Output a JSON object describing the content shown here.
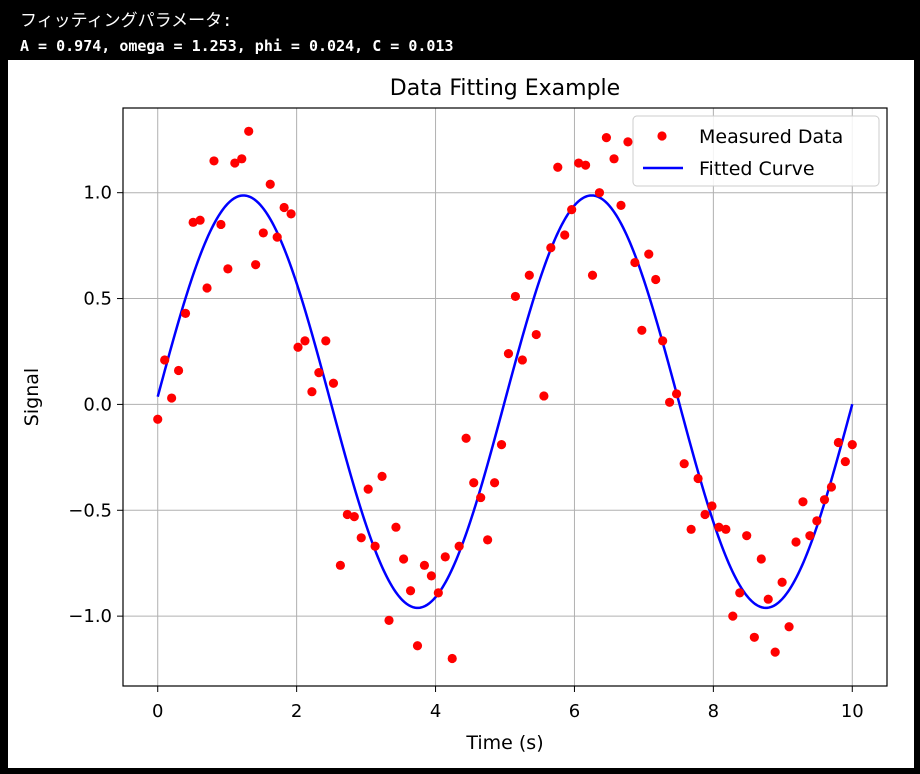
{
  "console": {
    "line1": "フィッティングパラメータ:",
    "line2": "A = 0.974, omega = 1.253, phi = 0.024, C = 0.013"
  },
  "chart_data": {
    "type": "scatter",
    "title": "Data Fitting Example",
    "xlabel": "Time (s)",
    "ylabel": "Signal",
    "xlim": [
      -0.5,
      10.5
    ],
    "ylim": [
      -1.33,
      1.4
    ],
    "xticks": [
      0,
      2,
      4,
      6,
      8,
      10
    ],
    "xtick_labels": [
      "0",
      "2",
      "4",
      "6",
      "8",
      "10"
    ],
    "yticks": [
      -1.0,
      -0.5,
      0.0,
      0.5,
      1.0
    ],
    "ytick_labels": [
      "−1.0",
      "−0.5",
      "0.0",
      "0.5",
      "1.0"
    ],
    "grid": true,
    "legend_position": "top-right",
    "series": [
      {
        "name": "Measured Data",
        "kind": "scatter",
        "color": "#ff0000",
        "points": [
          [
            0.0,
            -0.07
          ],
          [
            0.1,
            0.21
          ],
          [
            0.2,
            0.03
          ],
          [
            0.3,
            0.16
          ],
          [
            0.4,
            0.43
          ],
          [
            0.51,
            0.86
          ],
          [
            0.61,
            0.87
          ],
          [
            0.71,
            0.55
          ],
          [
            0.81,
            1.15
          ],
          [
            0.91,
            0.85
          ],
          [
            1.01,
            0.64
          ],
          [
            1.11,
            1.14
          ],
          [
            1.21,
            1.16
          ],
          [
            1.31,
            1.29
          ],
          [
            1.41,
            0.66
          ],
          [
            1.52,
            0.81
          ],
          [
            1.62,
            1.04
          ],
          [
            1.72,
            0.79
          ],
          [
            1.82,
            0.93
          ],
          [
            1.92,
            0.9
          ],
          [
            2.02,
            0.27
          ],
          [
            2.12,
            0.3
          ],
          [
            2.22,
            0.06
          ],
          [
            2.32,
            0.15
          ],
          [
            2.42,
            0.3
          ],
          [
            2.53,
            0.1
          ],
          [
            2.63,
            -0.76
          ],
          [
            2.73,
            -0.52
          ],
          [
            2.83,
            -0.53
          ],
          [
            2.93,
            -0.63
          ],
          [
            3.03,
            -0.4
          ],
          [
            3.13,
            -0.67
          ],
          [
            3.23,
            -0.34
          ],
          [
            3.33,
            -1.02
          ],
          [
            3.43,
            -0.58
          ],
          [
            3.54,
            -0.73
          ],
          [
            3.64,
            -0.88
          ],
          [
            3.74,
            -1.14
          ],
          [
            3.84,
            -0.76
          ],
          [
            3.94,
            -0.81
          ],
          [
            4.04,
            -0.89
          ],
          [
            4.14,
            -0.72
          ],
          [
            4.24,
            -1.2
          ],
          [
            4.34,
            -0.67
          ],
          [
            4.44,
            -0.16
          ],
          [
            4.55,
            -0.37
          ],
          [
            4.65,
            -0.44
          ],
          [
            4.75,
            -0.64
          ],
          [
            4.85,
            -0.37
          ],
          [
            4.95,
            -0.19
          ],
          [
            5.05,
            0.24
          ],
          [
            5.15,
            0.51
          ],
          [
            5.25,
            0.21
          ],
          [
            5.35,
            0.61
          ],
          [
            5.45,
            0.33
          ],
          [
            5.56,
            0.04
          ],
          [
            5.66,
            0.74
          ],
          [
            5.76,
            1.12
          ],
          [
            5.86,
            0.8
          ],
          [
            5.96,
            0.92
          ],
          [
            6.06,
            1.14
          ],
          [
            6.16,
            1.13
          ],
          [
            6.26,
            0.61
          ],
          [
            6.36,
            1.0
          ],
          [
            6.46,
            1.26
          ],
          [
            6.57,
            1.16
          ],
          [
            6.67,
            0.94
          ],
          [
            6.77,
            1.24
          ],
          [
            6.87,
            0.67
          ],
          [
            6.97,
            0.35
          ],
          [
            7.07,
            0.71
          ],
          [
            7.17,
            0.59
          ],
          [
            7.27,
            0.3
          ],
          [
            7.37,
            0.01
          ],
          [
            7.47,
            0.05
          ],
          [
            7.58,
            -0.28
          ],
          [
            7.68,
            -0.59
          ],
          [
            7.78,
            -0.35
          ],
          [
            7.88,
            -0.52
          ],
          [
            7.98,
            -0.48
          ],
          [
            8.08,
            -0.58
          ],
          [
            8.18,
            -0.59
          ],
          [
            8.28,
            -1.0
          ],
          [
            8.38,
            -0.89
          ],
          [
            8.48,
            -0.62
          ],
          [
            8.59,
            -1.1
          ],
          [
            8.69,
            -0.73
          ],
          [
            8.79,
            -0.92
          ],
          [
            8.89,
            -1.17
          ],
          [
            8.99,
            -0.84
          ],
          [
            9.09,
            -1.05
          ],
          [
            9.19,
            -0.65
          ],
          [
            9.29,
            -0.46
          ],
          [
            9.39,
            -0.62
          ],
          [
            9.49,
            -0.55
          ],
          [
            9.6,
            -0.45
          ],
          [
            9.7,
            -0.39
          ],
          [
            9.8,
            -0.18
          ],
          [
            9.9,
            -0.27
          ],
          [
            10.0,
            -0.19
          ]
        ]
      },
      {
        "name": "Fitted Curve",
        "kind": "line",
        "color": "#0000ff",
        "function": "A*sin(omega*t+phi)+C",
        "params": {
          "A": 0.974,
          "omega": 1.253,
          "phi": 0.024,
          "C": 0.013
        },
        "t_range": [
          0,
          10
        ]
      }
    ]
  }
}
